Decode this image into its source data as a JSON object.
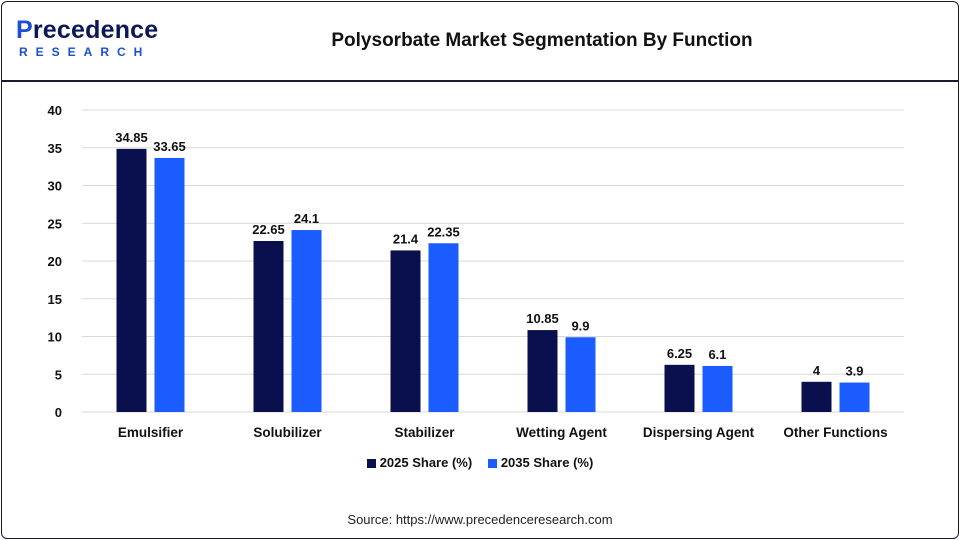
{
  "header": {
    "logo_top_first": "P",
    "logo_top_rest": "recedence",
    "logo_bottom": "RESEARCH",
    "title": "Polysorbate Market Segmentation By Function"
  },
  "chart_data": {
    "type": "bar",
    "categories": [
      "Emulsifier",
      "Solubilizer",
      "Stabilizer",
      "Wetting Agent",
      "Dispersing Agent",
      "Other Functions"
    ],
    "series": [
      {
        "name": "2025 Share (%)",
        "color": "#0a0f4d",
        "values": [
          34.85,
          22.65,
          21.4,
          10.85,
          6.25,
          4
        ],
        "labels": [
          "34.85",
          "22.65",
          "21.4",
          "10.85",
          "6.25",
          "4"
        ]
      },
      {
        "name": "2035 Share (%)",
        "color": "#1a5cff",
        "values": [
          33.65,
          24.1,
          22.35,
          9.9,
          6.1,
          3.9
        ],
        "labels": [
          "33.65",
          "24.1",
          "22.35",
          "9.9",
          "6.1",
          "3.9"
        ]
      }
    ],
    "ylim": [
      0,
      40
    ],
    "yticks": [
      0,
      5,
      10,
      15,
      20,
      25,
      30,
      35,
      40
    ],
    "grid": true,
    "legend_position": "bottom-center"
  },
  "source": "Source: https://www.precedenceresearch.com"
}
